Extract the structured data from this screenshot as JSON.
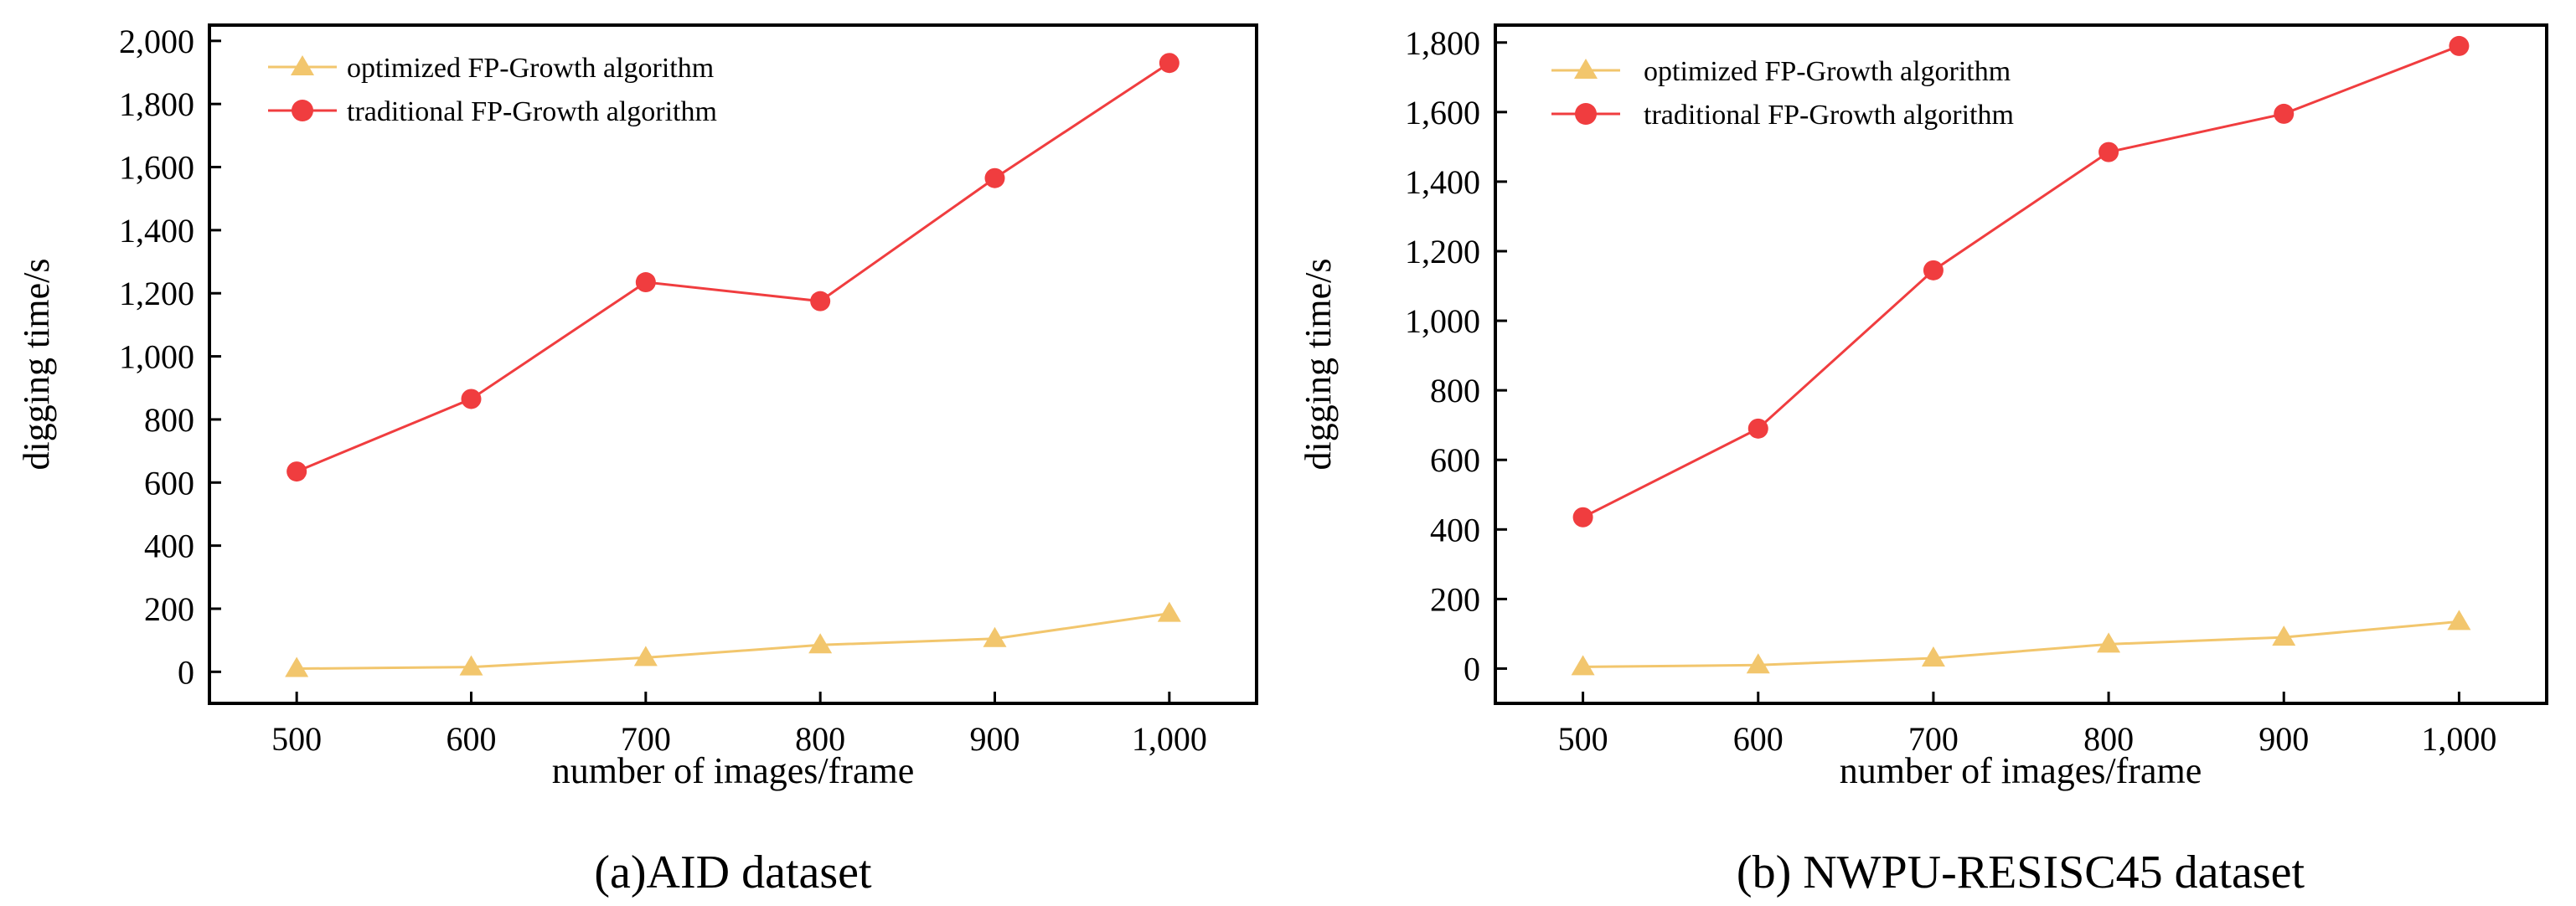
{
  "figure": {
    "colors": {
      "traditional": "#f03d3f",
      "optimized": "#f2c66d",
      "axis": "#000000"
    }
  },
  "chart_data": [
    {
      "type": "line",
      "caption": "(a)AID dataset",
      "xlabel": "number of images/frame",
      "ylabel": "digging time/s",
      "categories": [
        "500",
        "600",
        "700",
        "800",
        "900",
        "1,000"
      ],
      "x": [
        500,
        600,
        700,
        800,
        900,
        1000
      ],
      "xlim": [
        450,
        1050
      ],
      "ylim": [
        -100,
        2050
      ],
      "yticks": [
        0,
        200,
        400,
        600,
        800,
        1000,
        1200,
        1400,
        1600,
        1800,
        2000
      ],
      "ytick_labels": [
        "0",
        "200",
        "400",
        "600",
        "800",
        "1,000",
        "1,200",
        "1,400",
        "1,600",
        "1,800",
        "2,000"
      ],
      "legend_position": "top-left",
      "grid": false,
      "series": [
        {
          "name": "optimized FP-Growth algorithm",
          "marker": "triangle",
          "color": "#f2c66d",
          "values": [
            10,
            15,
            45,
            85,
            105,
            185
          ]
        },
        {
          "name": "traditional FP-Growth algorithm",
          "marker": "circle",
          "color": "#f03d3f",
          "values": [
            635,
            865,
            1235,
            1175,
            1565,
            1930
          ]
        }
      ]
    },
    {
      "type": "line",
      "caption": "(b) NWPU-RESISC45 dataset",
      "xlabel": "number of images/frame",
      "ylabel": "digging time/s",
      "categories": [
        "500",
        "600",
        "700",
        "800",
        "900",
        "1,000"
      ],
      "x": [
        500,
        600,
        700,
        800,
        900,
        1000
      ],
      "xlim": [
        450,
        1050
      ],
      "ylim": [
        -100,
        1850
      ],
      "yticks": [
        0,
        200,
        400,
        600,
        800,
        1000,
        1200,
        1400,
        1600,
        1800
      ],
      "ytick_labels": [
        "0",
        "200",
        "400",
        "600",
        "800",
        "1,000",
        "1,200",
        "1,400",
        "1,600",
        "1,800"
      ],
      "legend_position": "top-left",
      "grid": false,
      "series": [
        {
          "name": "optimized FP-Growth algorithm",
          "marker": "triangle",
          "color": "#f2c66d",
          "values": [
            5,
            10,
            30,
            70,
            90,
            135
          ]
        },
        {
          "name": "traditional FP-Growth algorithm",
          "marker": "circle",
          "color": "#f03d3f",
          "values": [
            435,
            690,
            1145,
            1485,
            1595,
            1790
          ]
        }
      ]
    }
  ]
}
